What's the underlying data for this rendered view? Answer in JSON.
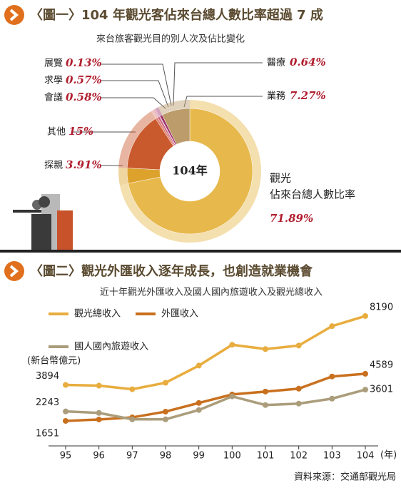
{
  "chart_data": [
    {
      "type": "pie",
      "title": "〈圖一〉104 年觀光客佔來台總人數比率超過 7 成",
      "subtitle": "來台旅客觀光目的別人次及佔比變化",
      "center_label": "104年",
      "highlight_label": "佔來台總人數比率",
      "categories": [
        "觀光",
        "探親",
        "其他",
        "會議",
        "求學",
        "展覽",
        "醫療",
        "業務"
      ],
      "values": [
        71.89,
        3.91,
        15,
        0.58,
        0.57,
        0.13,
        0.64,
        7.27
      ],
      "value_labels": [
        "71.89%",
        "3.91%",
        "15%",
        "0.58%",
        "0.57%",
        "0.13%",
        "0.64%",
        "7.27%"
      ],
      "colors": [
        "#e7b84b",
        "#dca22c",
        "#c95a2e",
        "#de8270",
        "#cf6a86",
        "#8d4a8a",
        "#a0306a",
        "#bb9c6a"
      ]
    },
    {
      "type": "line",
      "title": "〈圖二〉觀光外匯收入逐年成長，也創造就業機會",
      "subtitle": "近十年觀光外匯收入及國人國內旅遊收入及觀光總收入",
      "y_label": "(新台幣億元)",
      "x_unit": "(年)",
      "source": "資料來源：交通部觀光局",
      "categories": [
        "95",
        "96",
        "97",
        "98",
        "99",
        "100",
        "101",
        "102",
        "103",
        "104"
      ],
      "series": [
        {
          "name": "觀光總收入",
          "color": "#e8ad3e",
          "values": [
            3894,
            3850,
            3625,
            4030,
            5100,
            6400,
            6130,
            6350,
            7560,
            8190
          ]
        },
        {
          "name": "外匯收入",
          "color": "#c9701f",
          "values": [
            1651,
            1740,
            1870,
            2230,
            2770,
            3300,
            3480,
            3660,
            4420,
            4589
          ]
        },
        {
          "name": "國人國內旅遊收入",
          "color": "#ab9d7b",
          "values": [
            2243,
            2150,
            1750,
            1750,
            2330,
            3180,
            2640,
            2730,
            3040,
            3601
          ]
        }
      ],
      "ylim": [
        1000,
        8500
      ]
    }
  ]
}
